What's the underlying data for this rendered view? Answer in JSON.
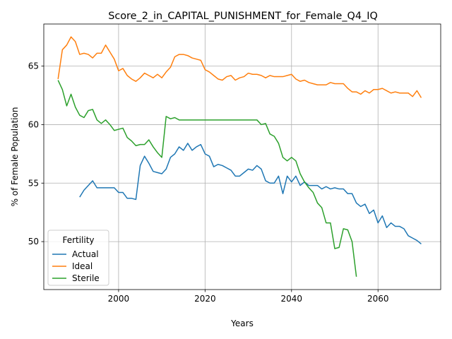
{
  "chart_data": {
    "type": "line",
    "title": "Score_2_in_CAPITAL_PUNISHMENT_for_Female_Q4_IQ",
    "xlabel": "Years",
    "ylabel": "% of Female Population",
    "xlim": [
      1982.7,
      2074.5
    ],
    "ylim": [
      45.9,
      68.6
    ],
    "xticks": [
      2000,
      2020,
      2040,
      2060
    ],
    "yticks": [
      50,
      55,
      60,
      65
    ],
    "grid": true,
    "legend": {
      "title": "Fertility",
      "position": "lower-left"
    },
    "series": [
      {
        "name": "Actual",
        "color": "#1f77b4",
        "x": [
          1991,
          1992,
          1993,
          1994,
          1995,
          1996,
          1997,
          1998,
          1999,
          2000,
          2001,
          2002,
          2003,
          2004,
          2005,
          2006,
          2007,
          2008,
          2009,
          2010,
          2011,
          2012,
          2013,
          2014,
          2015,
          2016,
          2017,
          2018,
          2019,
          2020,
          2021,
          2022,
          2023,
          2024,
          2025,
          2026,
          2027,
          2028,
          2029,
          2030,
          2031,
          2032,
          2033,
          2034,
          2035,
          2036,
          2037,
          2038,
          2039,
          2040,
          2041,
          2042,
          2043,
          2044,
          2045,
          2046,
          2047,
          2048,
          2049,
          2050,
          2051,
          2052,
          2053,
          2054,
          2055,
          2056,
          2057,
          2058,
          2059,
          2060,
          2061,
          2062,
          2063,
          2064,
          2065,
          2066,
          2067,
          2068,
          2069,
          2070
        ],
        "y": [
          53.8,
          54.4,
          54.8,
          55.2,
          54.6,
          54.6,
          54.6,
          54.6,
          54.6,
          54.2,
          54.2,
          53.7,
          53.7,
          53.6,
          56.5,
          57.3,
          56.7,
          56.0,
          55.9,
          55.8,
          56.2,
          57.2,
          57.5,
          58.1,
          57.8,
          58.4,
          57.8,
          58.1,
          58.3,
          57.5,
          57.3,
          56.4,
          56.6,
          56.5,
          56.3,
          56.1,
          55.6,
          55.6,
          55.9,
          56.2,
          56.1,
          56.5,
          56.2,
          55.2,
          55.0,
          55.0,
          55.6,
          54.1,
          55.6,
          55.1,
          55.6,
          54.8,
          55.1,
          54.8,
          54.8,
          54.8,
          54.5,
          54.7,
          54.5,
          54.6,
          54.5,
          54.5,
          54.1,
          54.1,
          53.3,
          53.0,
          53.2,
          52.4,
          52.7,
          51.6,
          52.2,
          51.2,
          51.6,
          51.3,
          51.3,
          51.1,
          50.5,
          50.3,
          50.1,
          49.8
        ]
      },
      {
        "name": "Ideal",
        "color": "#ff7f0e",
        "x": [
          1986,
          1987,
          1988,
          1989,
          1990,
          1991,
          1992,
          1993,
          1994,
          1995,
          1996,
          1997,
          1998,
          1999,
          2000,
          2001,
          2002,
          2003,
          2004,
          2005,
          2006,
          2007,
          2008,
          2009,
          2010,
          2011,
          2012,
          2013,
          2014,
          2015,
          2016,
          2017,
          2018,
          2019,
          2020,
          2021,
          2022,
          2023,
          2024,
          2025,
          2026,
          2027,
          2028,
          2029,
          2030,
          2031,
          2032,
          2033,
          2034,
          2035,
          2036,
          2037,
          2038,
          2039,
          2040,
          2041,
          2042,
          2043,
          2044,
          2045,
          2046,
          2047,
          2048,
          2049,
          2050,
          2051,
          2052,
          2053,
          2054,
          2055,
          2056,
          2057,
          2058,
          2059,
          2060,
          2061,
          2062,
          2063,
          2064,
          2065,
          2066,
          2067,
          2068,
          2069,
          2070
        ],
        "y": [
          63.9,
          66.4,
          66.8,
          67.5,
          67.1,
          66.0,
          66.1,
          66.0,
          65.7,
          66.1,
          66.1,
          66.8,
          66.2,
          65.6,
          64.6,
          64.8,
          64.2,
          63.9,
          63.7,
          64.0,
          64.4,
          64.2,
          64.0,
          64.3,
          64.0,
          64.5,
          64.9,
          65.8,
          66.0,
          66.0,
          65.9,
          65.7,
          65.6,
          65.5,
          64.7,
          64.5,
          64.2,
          63.9,
          63.8,
          64.1,
          64.2,
          63.8,
          64.0,
          64.1,
          64.4,
          64.3,
          64.3,
          64.2,
          64.0,
          64.2,
          64.1,
          64.1,
          64.1,
          64.2,
          64.3,
          63.9,
          63.7,
          63.8,
          63.6,
          63.5,
          63.4,
          63.4,
          63.4,
          63.6,
          63.5,
          63.5,
          63.5,
          63.1,
          62.8,
          62.8,
          62.6,
          62.9,
          62.7,
          63.0,
          63.0,
          63.1,
          62.9,
          62.7,
          62.8,
          62.7,
          62.7,
          62.7,
          62.4,
          62.9,
          62.3
        ]
      },
      {
        "name": "Sterile",
        "color": "#2ca02c",
        "x": [
          1986,
          1987,
          1988,
          1989,
          1990,
          1991,
          1992,
          1993,
          1994,
          1995,
          1996,
          1997,
          1998,
          1999,
          2000,
          2001,
          2002,
          2003,
          2004,
          2005,
          2006,
          2007,
          2008,
          2009,
          2010,
          2011,
          2012,
          2013,
          2014,
          2015,
          2016,
          2017,
          2018,
          2019,
          2020,
          2021,
          2022,
          2023,
          2024,
          2025,
          2026,
          2027,
          2028,
          2029,
          2030,
          2031,
          2032,
          2033,
          2034,
          2035,
          2036,
          2037,
          2038,
          2039,
          2040,
          2041,
          2042,
          2043,
          2044,
          2045,
          2046,
          2047,
          2048,
          2049,
          2050,
          2051,
          2052,
          2053,
          2054,
          2055
        ],
        "y": [
          63.8,
          63.0,
          61.6,
          62.6,
          61.5,
          60.8,
          60.6,
          61.2,
          61.3,
          60.4,
          60.1,
          60.4,
          60.0,
          59.5,
          59.6,
          59.7,
          58.9,
          58.6,
          58.2,
          58.3,
          58.3,
          58.7,
          58.1,
          57.6,
          57.2,
          60.7,
          60.5,
          60.6,
          60.4,
          60.4,
          60.4,
          60.4,
          60.4,
          60.4,
          60.4,
          60.4,
          60.4,
          60.4,
          60.4,
          60.4,
          60.4,
          60.4,
          60.4,
          60.4,
          60.4,
          60.4,
          60.4,
          60.0,
          60.1,
          59.2,
          59.0,
          58.4,
          57.2,
          56.9,
          57.2,
          56.9,
          55.8,
          55.1,
          54.6,
          54.2,
          53.3,
          52.9,
          51.6,
          51.6,
          49.4,
          49.5,
          51.1,
          51.0,
          50.0,
          47.0
        ]
      }
    ]
  }
}
